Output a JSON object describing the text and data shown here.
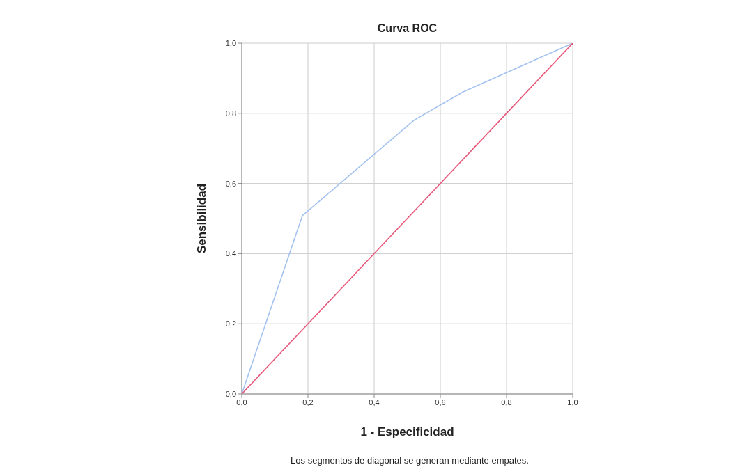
{
  "chart_data": {
    "type": "line",
    "title": "Curva ROC",
    "xlabel": "1 - Especificidad",
    "ylabel": "Sensibilidad",
    "annotations": [
      "Los segmentos de diagonal se generan mediante empates."
    ],
    "series": [
      {
        "color": "#a3c2ef",
        "x": [
          0,
          0.183,
          0.52,
          0.669,
          1
        ],
        "values": [
          0,
          0.508,
          0.78,
          0.861,
          1
        ]
      },
      {
        "color": "#e8587a",
        "x": [
          0,
          1
        ],
        "values": [
          0,
          1
        ]
      }
    ],
    "xlim": [
      0,
      1
    ],
    "ylim": [
      0,
      1
    ],
    "xticks": [
      {
        "value": 0,
        "label": "0,0"
      },
      {
        "value": 0.2,
        "label": "0,2"
      },
      {
        "value": 0.4,
        "label": "0,4"
      },
      {
        "value": 0.6,
        "label": "0,6"
      },
      {
        "value": 0.8,
        "label": "0,8"
      },
      {
        "value": 1,
        "label": "1,0"
      }
    ],
    "yticks": [
      {
        "value": 0,
        "label": "0,0"
      },
      {
        "value": 0.2,
        "label": "0,2"
      },
      {
        "value": 0.4,
        "label": "0,4"
      },
      {
        "value": 0.6,
        "label": "0,6"
      },
      {
        "value": 0.8,
        "label": "0,8"
      },
      {
        "value": 1,
        "label": "1,0"
      }
    ],
    "grid": true,
    "marker": "none",
    "line_style": "solid"
  }
}
